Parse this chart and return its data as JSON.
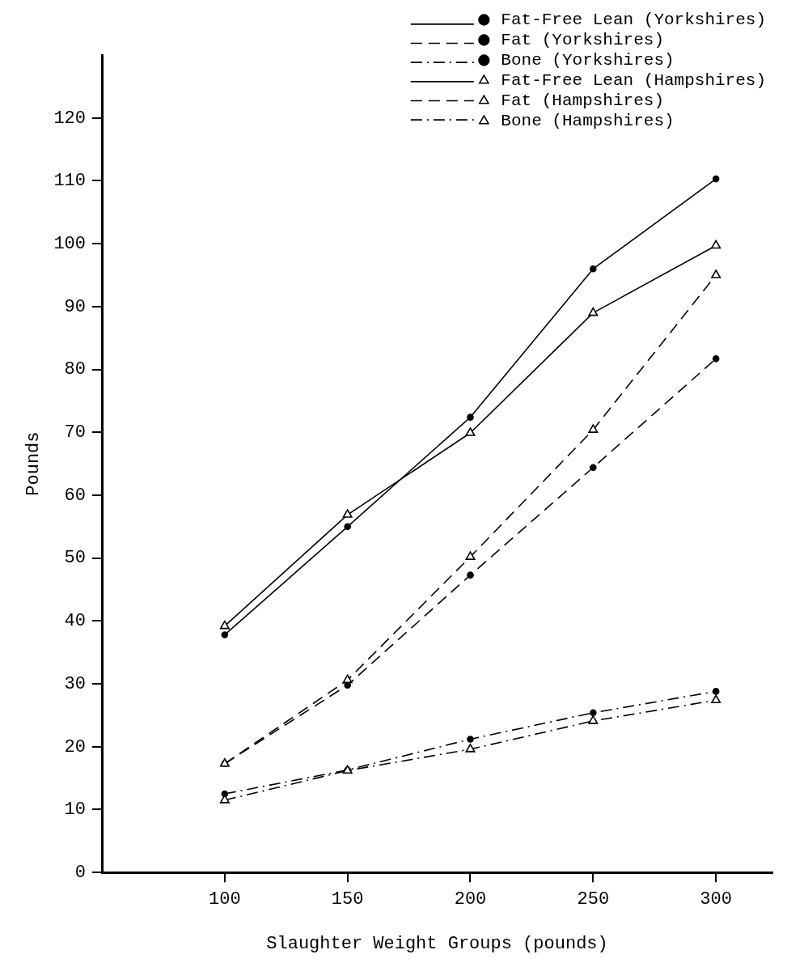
{
  "chart_data": {
    "type": "line",
    "xlabel": "Slaughter Weight Groups (pounds)",
    "ylabel": "Pounds",
    "x": [
      100,
      150,
      200,
      250,
      300
    ],
    "xlim": [
      50,
      323
    ],
    "xticks": [
      100,
      150,
      200,
      250,
      300
    ],
    "ylim": [
      0,
      130
    ],
    "yticks": [
      0,
      10,
      20,
      30,
      40,
      50,
      60,
      70,
      80,
      90,
      100,
      110,
      120
    ],
    "grid": false,
    "legend": "top right",
    "series": [
      {
        "name": "Fat-Free Lean (Yorkshires)",
        "color": "#000000",
        "marker": "circle",
        "line_style": "solid",
        "values": [
          37.8,
          55,
          72.4,
          96,
          110.3
        ]
      },
      {
        "name": "Fat (Yorkshires)",
        "color": "#000000",
        "marker": "circle",
        "line_style": "dashed",
        "values": [
          17.3,
          29.8,
          47.3,
          64.4,
          81.7
        ]
      },
      {
        "name": "Bone (Yorkshires)",
        "color": "#000000",
        "marker": "circle",
        "line_style": "dashdot",
        "values": [
          12.5,
          16.3,
          21.2,
          25.4,
          28.8
        ]
      },
      {
        "name": "Fat-Free Lean (Hampshires)",
        "color": "#000000",
        "marker": "triangle",
        "line_style": "solid",
        "values": [
          39.2,
          56.9,
          69.9,
          89,
          99.7
        ]
      },
      {
        "name": "Fat (Hampshires)",
        "color": "#000000",
        "marker": "triangle",
        "line_style": "dashed",
        "values": [
          17.3,
          30.6,
          50.2,
          70.4,
          95
        ]
      },
      {
        "name": "Bone (Hampshires)",
        "color": "#000000",
        "marker": "triangle",
        "line_style": "dashdot",
        "values": [
          11.5,
          16.2,
          19.6,
          24.1,
          27.4
        ]
      }
    ]
  }
}
